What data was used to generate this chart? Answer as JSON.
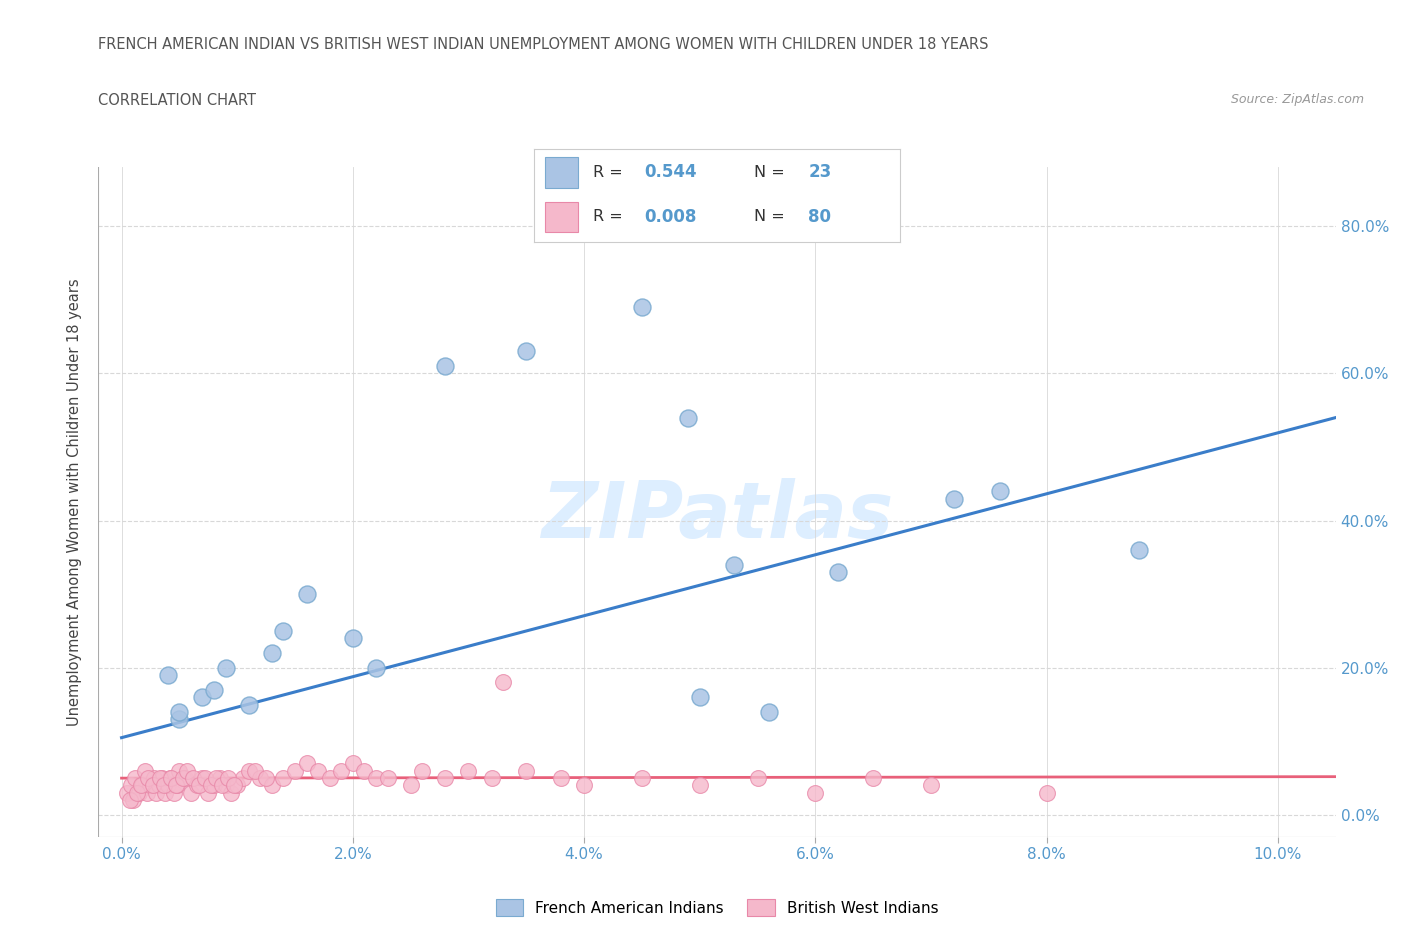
{
  "title_line1": "FRENCH AMERICAN INDIAN VS BRITISH WEST INDIAN UNEMPLOYMENT AMONG WOMEN WITH CHILDREN UNDER 18 YEARS",
  "title_line2": "CORRELATION CHART",
  "source_text": "Source: ZipAtlas.com",
  "ylabel": "Unemployment Among Women with Children Under 18 years",
  "xlim": [
    -0.2,
    10.5
  ],
  "ylim": [
    -3,
    88
  ],
  "xtick_vals": [
    0.0,
    2.0,
    4.0,
    6.0,
    8.0,
    10.0
  ],
  "ytick_vals": [
    0.0,
    20.0,
    40.0,
    60.0,
    80.0
  ],
  "legend_R1": "0.544",
  "legend_N1": "23",
  "legend_R2": "0.008",
  "legend_N2": "80",
  "blue_fill": "#aac4e4",
  "blue_edge": "#7aaad0",
  "pink_fill": "#f5b8cb",
  "pink_edge": "#e888a8",
  "trend_blue": "#3a7dc9",
  "trend_pink": "#e8607a",
  "tick_color": "#5599cc",
  "text_color": "#555555",
  "grid_color": "#d8d8d8",
  "watermark_color": "#ddeeff",
  "blue_x": [
    0.5,
    0.4,
    1.3,
    0.9,
    1.1,
    0.7,
    0.5,
    0.8,
    2.2,
    2.8,
    3.5,
    4.5,
    4.9,
    5.6,
    6.2,
    7.2,
    8.8,
    1.6,
    2.0,
    5.0,
    5.3,
    7.6,
    1.4
  ],
  "blue_y": [
    13,
    19,
    22,
    20,
    15,
    16,
    14,
    17,
    20,
    61,
    63,
    69,
    54,
    14,
    33,
    43,
    36,
    30,
    24,
    16,
    34,
    44,
    25
  ],
  "pink_x": [
    0.05,
    0.08,
    0.1,
    0.12,
    0.15,
    0.18,
    0.2,
    0.22,
    0.25,
    0.28,
    0.3,
    0.32,
    0.35,
    0.38,
    0.4,
    0.42,
    0.45,
    0.48,
    0.5,
    0.55,
    0.6,
    0.65,
    0.7,
    0.75,
    0.8,
    0.85,
    0.9,
    0.95,
    1.0,
    1.05,
    1.1,
    1.2,
    1.3,
    1.4,
    1.5,
    1.6,
    1.7,
    1.8,
    1.9,
    2.0,
    2.1,
    2.2,
    2.5,
    2.8,
    3.0,
    3.2,
    3.5,
    3.8,
    4.0,
    4.5,
    5.0,
    5.5,
    6.0,
    6.5,
    7.0,
    8.0,
    0.07,
    0.13,
    0.17,
    0.23,
    0.27,
    0.33,
    0.37,
    0.43,
    0.47,
    0.53,
    0.57,
    0.62,
    0.67,
    0.72,
    0.77,
    0.82,
    0.87,
    0.92,
    0.97,
    1.15,
    1.25,
    2.3,
    2.6,
    3.3
  ],
  "pink_y": [
    3,
    4,
    2,
    5,
    3,
    4,
    6,
    3,
    4,
    5,
    3,
    4,
    5,
    3,
    4,
    5,
    3,
    4,
    6,
    5,
    3,
    4,
    5,
    3,
    4,
    5,
    4,
    3,
    4,
    5,
    6,
    5,
    4,
    5,
    6,
    7,
    6,
    5,
    6,
    7,
    6,
    5,
    4,
    5,
    6,
    5,
    6,
    5,
    4,
    5,
    4,
    5,
    3,
    5,
    4,
    3,
    2,
    3,
    4,
    5,
    4,
    5,
    4,
    5,
    4,
    5,
    6,
    5,
    4,
    5,
    4,
    5,
    4,
    5,
    4,
    6,
    5,
    5,
    6,
    18
  ],
  "blue_trend_x0": 0.0,
  "blue_trend_y0": 10.5,
  "blue_trend_x1": 10.5,
  "blue_trend_y1": 54.0,
  "pink_trend_x0": 0.0,
  "pink_trend_y0": 5.0,
  "pink_trend_x1": 10.5,
  "pink_trend_y1": 5.2
}
